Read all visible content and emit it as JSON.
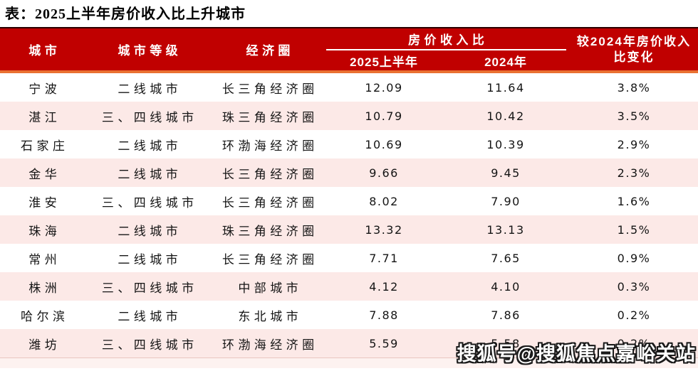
{
  "page": {
    "title": "表：2025上半年房价收入比上升城市",
    "watermark": "搜狐号@搜狐焦点嘉峪关站"
  },
  "colors": {
    "header_bg": "#C00000",
    "accent_line": "#E97132",
    "alt_row_bg": "#FCE9E7",
    "header_text": "#FFFFFF",
    "body_text": "#141414"
  },
  "chart_data": {
    "type": "table",
    "title": "表：2025上半年房价收入比上升城市",
    "header": {
      "city": "城市",
      "tier": "城市等级",
      "circle": "经济圈",
      "ratio_group": "房价收入比",
      "ratio_2025h1": "2025上半年",
      "ratio_2024": "2024年",
      "change_label": "较2024年房价收入比变化",
      "change_line1": "较2024年房价收入",
      "change_line2": "比变化"
    },
    "columns": [
      "城市",
      "城市等级",
      "经济圈",
      "2025上半年",
      "2024年",
      "较2024年房价收入比变化"
    ],
    "rows": [
      [
        "宁波",
        "二线城市",
        "长三角经济圈",
        "12.09",
        "11.64",
        "3.8%"
      ],
      [
        "湛江",
        "三、四线城市",
        "珠三角经济圈",
        "10.79",
        "10.42",
        "3.5%"
      ],
      [
        "石家庄",
        "二线城市",
        "环渤海经济圈",
        "10.69",
        "10.39",
        "2.9%"
      ],
      [
        "金华",
        "二线城市",
        "长三角经济圈",
        "9.66",
        "9.45",
        "2.3%"
      ],
      [
        "淮安",
        "三、四线城市",
        "长三角经济圈",
        "8.02",
        "7.90",
        "1.6%"
      ],
      [
        "珠海",
        "二线城市",
        "珠三角经济圈",
        "13.32",
        "13.13",
        "1.5%"
      ],
      [
        "常州",
        "二线城市",
        "长三角经济圈",
        "7.71",
        "7.65",
        "0.9%"
      ],
      [
        "株洲",
        "三、四线城市",
        "中部城市",
        "4.12",
        "4.10",
        "0.3%"
      ],
      [
        "哈尔滨",
        "二线城市",
        "东北城市",
        "7.88",
        "7.86",
        "0.2%"
      ],
      [
        "潍坊",
        "三、四线城市",
        "环渤海经济圈",
        "5.59",
        "5.58",
        "0.2%"
      ]
    ]
  }
}
